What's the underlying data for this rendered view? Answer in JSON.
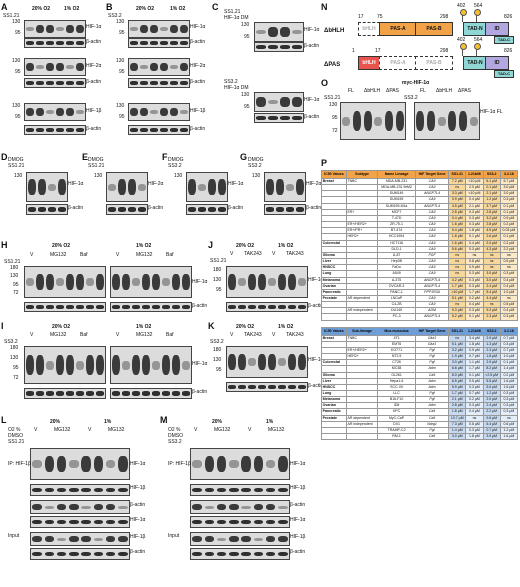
{
  "panels": {
    "A": {
      "label": "A",
      "conds": [
        "20% O2",
        "1% O2"
      ],
      "treat": "SS1.21",
      "rows": [
        "HIF-1α",
        "β-actin",
        "HIF-2α",
        "β-actin",
        "HIF-1β",
        "β-actin"
      ],
      "mw": [
        "130",
        "95",
        "130",
        "95",
        "130",
        "95"
      ]
    },
    "B": {
      "label": "B",
      "conds": [
        "20% O2",
        "1% O2"
      ],
      "treat": "SS3.2",
      "rows": [
        "HIF-1α",
        "β-actin",
        "HIF-2α",
        "β-actin",
        "HIF-1β",
        "β-actin"
      ],
      "mw": [
        "130",
        "95",
        "130",
        "95",
        "130",
        "95"
      ]
    },
    "C": {
      "label": "C",
      "treat1": "SS1.21",
      "treat2": "HIF-1α DM",
      "treat3": "SS3.2",
      "rows": [
        "HIF-1α",
        "β-actin",
        "HIF-1α",
        "β-actin"
      ],
      "mw": [
        "130",
        "95",
        "130",
        "95"
      ]
    },
    "D": {
      "label": "D",
      "t1": "DMOG",
      "t2": "SS1.21",
      "rows": [
        "HIF-1α",
        "β-actin"
      ],
      "mw": [
        "130"
      ]
    },
    "E": {
      "label": "E",
      "t1": "DMOG",
      "t2": "SS1.21",
      "rows": [
        "HIF-2α",
        "β-actin"
      ],
      "mw": [
        "130"
      ]
    },
    "F": {
      "label": "F",
      "t1": "DMOG",
      "t2": "SS3.2",
      "rows": [
        "HIF-1α",
        "β-actin"
      ],
      "mw": [
        "130"
      ]
    },
    "G": {
      "label": "G",
      "t1": "DMOG",
      "t2": "SS3.2",
      "rows": [
        "HIF-2α",
        "β-actin"
      ],
      "mw": [
        "130"
      ]
    },
    "H": {
      "label": "H",
      "conds": [
        "20% O2",
        "1% O2"
      ],
      "groups": [
        "V",
        "MG132",
        "Baf"
      ],
      "treat": "SS1.21",
      "rows": [
        "HIF-1α",
        "β-actin"
      ],
      "mw": [
        "180",
        "130",
        "95",
        "72"
      ]
    },
    "I": {
      "label": "I",
      "conds": [
        "20% O2",
        "1% O2"
      ],
      "groups": [
        "V",
        "MG132",
        "Baf"
      ],
      "treat": "SS3.2",
      "rows": [
        "HIF-1α",
        "β-actin"
      ],
      "mw": [
        "180",
        "130",
        "95",
        "72"
      ]
    },
    "J": {
      "label": "J",
      "conds": [
        "20% O2",
        "1% O2"
      ],
      "groups": [
        "V",
        "TAK243"
      ],
      "treat": "SS1.21",
      "rows": [
        "HIF-1α",
        "β-actin"
      ],
      "mw": [
        "180",
        "130",
        "95"
      ]
    },
    "K": {
      "label": "K",
      "conds": [
        "20% O2",
        "1% O2"
      ],
      "groups": [
        "V",
        "TAK243"
      ],
      "treat": "SS3.2",
      "rows": [
        "HIF-1α",
        "β-actin"
      ],
      "mw": [
        "180",
        "130",
        "95"
      ]
    },
    "L": {
      "label": "L",
      "conds": [
        "20%",
        "1%"
      ],
      "o2": "O2 %",
      "groups": [
        "V",
        "MG132"
      ],
      "t1": "DMSO",
      "t2": "SS1.21",
      "ip": "IP: HIF-1β",
      "input": "Input",
      "rows": [
        "HIF-1α",
        "HIF-1β",
        "β-actin",
        "HIF-1α",
        "HIF-1β",
        "β-actin"
      ]
    },
    "M": {
      "label": "M",
      "conds": [
        "20%",
        "1%"
      ],
      "o2": "O2 %",
      "groups": [
        "V",
        "MG132"
      ],
      "t1": "DMSO",
      "t2": "SS3.2",
      "ip": "IP: HIF-1β",
      "input": "Input",
      "rows": [
        "HIF-1α",
        "HIF-1β",
        "β-actin",
        "HIF-1α",
        "HIF-1β",
        "β-actin"
      ]
    },
    "N": {
      "label": "N",
      "construct1": "ΔbHLH",
      "construct2": "ΔPAS",
      "domains": {
        "bhlh": "bHLH",
        "pasa": "PAS-A",
        "pasb": "PAS-B",
        "id": "ID",
        "tadn": "TAD-N",
        "tadc": "TAD-C"
      },
      "pos1": [
        "17",
        "75",
        "298",
        "402",
        "564",
        "826"
      ],
      "pos2": [
        "1",
        "17",
        "298",
        "402",
        "564",
        "826"
      ]
    },
    "O": {
      "label": "O",
      "title": "myc-HIF-1α",
      "cols": [
        "FL",
        "ΔbHLH",
        "ΔPAS",
        "FL",
        "ΔbHLH",
        "ΔPAS"
      ],
      "t1": "SS1.21",
      "t2": "SS3.2",
      "side": "HIF-1α FL",
      "mw": [
        "130",
        "95",
        "72"
      ]
    },
    "P": {
      "label": "P",
      "header": [
        "IC50 Values",
        "Subtype",
        "Name Lineage",
        "HIF Target Gene",
        "SS1.21",
        "1.21b06",
        "SS3.2",
        "3.2.16"
      ],
      "header2": [
        "IC50 Values",
        "Sub-lineage",
        "Mus musculus",
        "HIF Target Gene",
        "SS1.21",
        "1.21b06",
        "SS3.2",
        "3.2.16"
      ],
      "human": [
        {
          "g": "Breast",
          "s": "TNBC",
          "c": "MDA-MB-231",
          "t": "CA9",
          "v": [
            "7.2 µM",
            "<10 µM",
            "6.1 µM",
            "6.7 µM"
          ]
        },
        {
          "g": "",
          "s": "",
          "c": "MDA-MB-231 BrM2",
          "t": "CA9",
          "v": [
            "ns",
            "2.0 µM",
            "0.1 µM",
            "3.0 µM"
          ]
        },
        {
          "g": "",
          "s": "",
          "c": "SUM149",
          "t": "ANGPTL4",
          "v": [
            "3.3 µM",
            "<10 µM",
            "2.1 µM",
            "3.0 µM"
          ]
        },
        {
          "g": "",
          "s": "",
          "c": "SUM159",
          "t": "CA9",
          "v": [
            "0.9 µM",
            "0.4 µM",
            "1.2 µM",
            "0.3 µM"
          ]
        },
        {
          "g": "",
          "s": "",
          "c": "SUM159-M1a",
          "t": "ANGPTL4",
          "v": [
            "4.5 µM",
            "2.1 µM",
            "3.7 µM",
            "0.1 µM"
          ]
        },
        {
          "g": "",
          "s": "ER+",
          "c": "MCF7",
          "t": "CA9",
          "v": [
            "2.8 µM",
            "0.3 µM",
            "2.8 µM",
            "0.1 µM"
          ]
        },
        {
          "g": "",
          "s": "",
          "c": "T-47D",
          "t": "CA9",
          "v": [
            "0.4 µM",
            "0.3 µM",
            "3.2 µM",
            "0.9 µM"
          ]
        },
        {
          "g": "",
          "s": "ER+/HER2+",
          "c": "ZR-75-1",
          "t": "CA9",
          "v": [
            "1.6 µM",
            "0.3 µM",
            "2.8 µM",
            "0.2 µM"
          ]
        },
        {
          "g": "",
          "s": "ER+/PR+",
          "c": "BT-474",
          "t": "CA9",
          "v": [
            "5.4 µM",
            "1.8 µM",
            "4.9 µM",
            "0.03 µM"
          ]
        },
        {
          "g": "",
          "s": "HER2+",
          "c": "HCC1954",
          "t": "CA9",
          "v": [
            "1.8 µM",
            "0.1 µM",
            "2.6 µM",
            "0.1 µM"
          ]
        },
        {
          "g": "Colorectal",
          "s": "",
          "c": "HCT116",
          "t": "CA9",
          "v": [
            "1.6 µM",
            "0.4 µM",
            "2.0 µM",
            "0.2 µM"
          ]
        },
        {
          "g": "",
          "s": "",
          "c": "DLD-1",
          "t": "CA9",
          "v": [
            "5.6 µM",
            "0.3 µM",
            "4.3 µM",
            "2.2 µM"
          ]
        },
        {
          "g": "Glioma",
          "s": "",
          "c": "U-87",
          "t": "PGF",
          "v": [
            "ns",
            "ns",
            "ns",
            "ns"
          ]
        },
        {
          "g": "Liver",
          "s": "",
          "c": "Hep3B",
          "t": "CA9",
          "v": [
            "ns",
            "0.8 µM",
            "ns",
            "0.5 µM"
          ]
        },
        {
          "g": "HNSCC",
          "s": "",
          "c": "FaDu",
          "t": "CA9",
          "v": [
            "ns",
            "0.9 µM",
            "ns",
            "ns"
          ]
        },
        {
          "g": "Lung",
          "s": "",
          "c": "A549",
          "t": "CA9",
          "v": [
            "ns",
            "0.3 µM",
            "3.0 µM",
            "0.3 µM"
          ]
        },
        {
          "g": "Melanoma",
          "s": "",
          "c": "A-375",
          "t": "ANGPTL4",
          "v": [
            "4.2 µM",
            "0.3 µM",
            "3.0 µM",
            "0.4 µM"
          ]
        },
        {
          "g": "Ovarian",
          "s": "",
          "c": "OVCAR-3",
          "t": "ANGPTL4",
          "v": [
            "1.7 µM",
            "0.3 µM",
            "2.4 µM",
            "0.4 µM"
          ]
        },
        {
          "g": "Pancreatic",
          "s": "",
          "c": "PANC-1",
          "t": "PPP1R3A",
          "v": [
            ">10 µM",
            "1.7 µM",
            "5.4 µM",
            "1.0 µM"
          ]
        },
        {
          "g": "Prostate",
          "s": "AR dependent",
          "c": "LNCaP",
          "t": "CA9",
          "v": [
            "5.1 µM",
            "0.2 µM",
            "4.4 µM",
            "ns"
          ]
        },
        {
          "g": "",
          "s": "",
          "c": "C4-2B",
          "t": "CA9",
          "v": [
            "ns",
            "0.4 µM",
            "ns",
            "0.5 µM"
          ]
        },
        {
          "g": "",
          "s": "AR independent",
          "c": "DU145",
          "t": "ADM",
          "v": [
            "9.3 µM",
            "0.3 µM",
            "9.2 µM",
            "0.4 µM"
          ]
        },
        {
          "g": "",
          "s": "",
          "c": "PC-3",
          "t": "ANGPTL4",
          "v": [
            "5.2 µM",
            "0.1 µM",
            "2.3 µM",
            "0.3 µM"
          ]
        }
      ],
      "mouse": [
        {
          "g": "Breast",
          "s": "TNBC",
          "c": "4T1",
          "t": "Glut1",
          "v": [
            "ns",
            "3.4 µM",
            "2.9 µM",
            "0.7 µM"
          ]
        },
        {
          "g": "",
          "s": "",
          "c": "EMT6",
          "t": "Glut1",
          "v": [
            "5.1 µM",
            "1.8 µM",
            "1.3 µM",
            "0.3 µM"
          ]
        },
        {
          "g": "",
          "s": "ER+/HER2+",
          "c": "EO771",
          "t": "Pgf",
          "v": [
            "3.2 µM",
            "0.9 µM",
            "2.3 µM",
            "0.7 µM"
          ]
        },
        {
          "g": "",
          "s": "HER2+",
          "c": "NT2.5",
          "t": "Pgf",
          "v": [
            "1.9 µM",
            "0.7 µM",
            "1.8 µM",
            "1.0 µM"
          ]
        },
        {
          "g": "Colorectal",
          "s": "",
          "c": "CT26",
          "t": "Pgf",
          "v": [
            "3.0 µM",
            "1.1 µM",
            "2.9 µM",
            "0.1 µM"
          ]
        },
        {
          "g": "",
          "s": "",
          "c": "MC38",
          "t": "Adm",
          "v": [
            "6.6 µM",
            "1.7 µM",
            "8.2 µM",
            "1.4 µM"
          ]
        },
        {
          "g": "Glioma",
          "s": "",
          "c": "GL261",
          "t": "Ca9",
          "v": [
            "6.0 µM",
            "0.1 µM",
            "<2.5 µM",
            "0.2 µM"
          ]
        },
        {
          "g": "Liver",
          "s": "",
          "c": "Hepa1-6",
          "t": "Adm",
          "v": [
            "6.5 µM",
            "0.5 µM",
            "5.5 µM",
            "1.6 µM"
          ]
        },
        {
          "g": "HNSCC",
          "s": "",
          "c": "SCC-VII",
          "t": "Adm",
          "v": [
            "5.9 µM",
            "0.3 µM",
            "5.0 µM",
            "1.6 µM"
          ]
        },
        {
          "g": "Lung",
          "s": "",
          "c": "LLC",
          "t": "Pgf",
          "v": [
            "1.7 µM",
            "0.7 µM",
            "1.2 µM",
            "0.3 µM"
          ]
        },
        {
          "g": "Melanoma",
          "s": "",
          "c": "B16-F10",
          "t": "Pgf",
          "v": [
            "2.1 µM",
            "0.2 µM",
            "2.0 µM",
            "0.3 µM"
          ]
        },
        {
          "g": "Ovarian",
          "s": "",
          "c": "ID8",
          "t": "Adm",
          "v": [
            "2.8 µM",
            "0.3 µM",
            "2.4 µM",
            "0.3 µM"
          ]
        },
        {
          "g": "Pancreatic",
          "s": "",
          "c": "KPC",
          "t": "Ca9",
          "v": [
            "1.8 µM",
            "0.4 µM",
            "2.2 µM",
            "0.3 µM"
          ]
        },
        {
          "g": "Prostate",
          "s": "AR dependent",
          "c": "MyC-CaP",
          "t": "Ca9",
          "v": [
            "10.7 µM",
            "ns",
            "9.6 µM",
            "ns"
          ]
        },
        {
          "g": "",
          "s": "AR independent",
          "c": "DX1",
          "t": "Ndrg1",
          "v": [
            "7.3 µM",
            "0.6 µM",
            "6.4 µM",
            "0.6 µM"
          ]
        },
        {
          "g": "",
          "s": "",
          "c": "TRAMP-C2",
          "t": "Pgf",
          "v": [
            "1.4 µM",
            "0.3 µM",
            "0.7 µM",
            "1.2 µM"
          ]
        },
        {
          "g": "",
          "s": "",
          "c": "RM-1",
          "t": "Ca9",
          "v": [
            "3.0 µM",
            "1.8 µM",
            "3.9 µM",
            "1.6 µM"
          ]
        }
      ]
    }
  }
}
